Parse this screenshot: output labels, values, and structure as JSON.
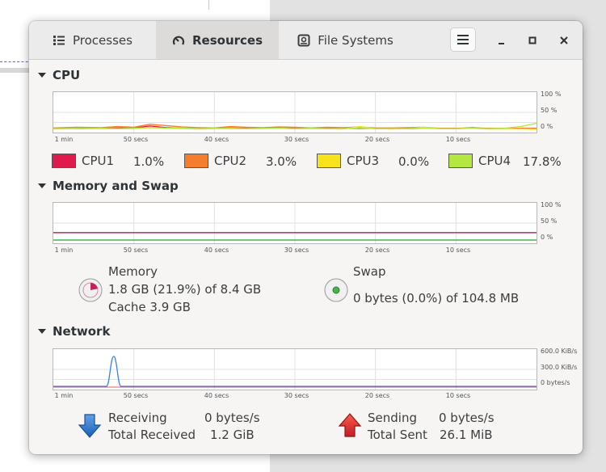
{
  "tabs": [
    {
      "label": "Processes",
      "icon": "list-icon"
    },
    {
      "label": "Resources",
      "icon": "gauge-icon"
    },
    {
      "label": "File Systems",
      "icon": "disk-icon"
    }
  ],
  "sections": {
    "cpu": {
      "title": "CPU"
    },
    "memory": {
      "title": "Memory and Swap"
    },
    "network": {
      "title": "Network"
    }
  },
  "axis": {
    "x_ticks": [
      "1 min",
      "50 secs",
      "40 secs",
      "30 secs",
      "20 secs",
      "10 secs"
    ],
    "percent_ticks": [
      "100 %",
      "50 %",
      "0 %"
    ],
    "network_ticks": [
      "600.0 KiB/s",
      "300.0 KiB/s",
      "0 bytes/s"
    ]
  },
  "cpu_legend": [
    {
      "name": "CPU1",
      "value": "1.0%",
      "color": "#e01b4c"
    },
    {
      "name": "CPU2",
      "value": "3.0%",
      "color": "#f57e2e"
    },
    {
      "name": "CPU3",
      "value": "0.0%",
      "color": "#f8e21d"
    },
    {
      "name": "CPU4",
      "value": "17.8%",
      "color": "#b5e743"
    }
  ],
  "memory": {
    "label": "Memory",
    "usage": "1.8 GB (21.9%) of 8.4 GB",
    "cache": "Cache 3.9 GB",
    "color": "#c0245a",
    "fraction": 0.219
  },
  "swap": {
    "label": "Swap",
    "usage": "0 bytes (0.0%) of 104.8 MB",
    "color": "#4caf50",
    "fraction": 0.0
  },
  "network": {
    "receiving_label": "Receiving",
    "receiving_value": "0 bytes/s",
    "total_received_label": "Total Received",
    "total_received_value": "1.2 GiB",
    "sending_label": "Sending",
    "sending_value": "0 bytes/s",
    "total_sent_label": "Total Sent",
    "total_sent_value": "26.1 MiB",
    "receiving_color": "#3584e4",
    "sending_color": "#e01b24"
  },
  "chart_data": [
    {
      "type": "line",
      "x": [
        60,
        57,
        54,
        52,
        50,
        48,
        46,
        44,
        42,
        40,
        38,
        36,
        34,
        32,
        30,
        28,
        26,
        24,
        22,
        20,
        18,
        16,
        14,
        12,
        10,
        8,
        6,
        4,
        2,
        0
      ],
      "series": [
        {
          "name": "CPU1",
          "values": [
            3,
            2,
            3,
            4,
            4,
            10,
            5,
            3,
            2,
            3,
            4,
            3,
            3,
            4,
            3,
            3,
            3,
            3,
            2,
            3,
            3,
            2,
            3,
            3,
            2,
            5,
            2,
            2,
            2,
            1
          ]
        },
        {
          "name": "CPU2",
          "values": [
            4,
            6,
            5,
            8,
            6,
            15,
            11,
            7,
            5,
            4,
            8,
            6,
            5,
            7,
            6,
            4,
            6,
            5,
            7,
            4,
            4,
            5,
            6,
            3,
            3,
            4,
            3,
            3,
            3,
            3
          ]
        },
        {
          "name": "CPU3",
          "values": [
            1,
            2,
            3,
            2,
            2,
            6,
            3,
            2,
            1,
            2,
            3,
            2,
            2,
            3,
            2,
            2,
            2,
            1,
            8,
            2,
            1,
            2,
            6,
            2,
            2,
            3,
            1,
            1,
            1,
            0
          ]
        },
        {
          "name": "CPU4",
          "values": [
            2,
            3,
            2,
            2,
            3,
            5,
            3,
            4,
            2,
            3,
            2,
            2,
            3,
            3,
            2,
            3,
            2,
            2,
            3,
            2,
            2,
            2,
            3,
            2,
            2,
            3,
            2,
            3,
            8,
            17.8
          ]
        }
      ],
      "ylim": [
        0,
        100
      ]
    },
    {
      "type": "line",
      "x": [
        60,
        0
      ],
      "series": [
        {
          "name": "Memory",
          "values": [
            21.9,
            21.9
          ]
        },
        {
          "name": "Swap",
          "values": [
            0,
            0
          ]
        }
      ],
      "ylim": [
        0,
        100
      ]
    },
    {
      "type": "line",
      "x": [
        60,
        59,
        58,
        57,
        56,
        55,
        54,
        53,
        52,
        51,
        50,
        49,
        48,
        40,
        30,
        20,
        10,
        0
      ],
      "series": [
        {
          "name": "Receiving",
          "values": [
            0,
            0,
            0,
            0,
            0,
            0,
            0,
            0,
            0,
            0,
            0,
            0,
            0,
            0,
            0,
            0,
            0,
            0
          ],
          "peak": {
            "x": 52.5,
            "value": 530
          }
        },
        {
          "name": "Sending",
          "values": [
            0,
            0,
            0,
            0,
            0,
            0,
            0,
            0,
            0,
            0,
            0,
            0,
            0,
            0,
            0,
            0,
            0,
            0
          ]
        }
      ],
      "ylim": [
        0,
        600
      ]
    }
  ]
}
